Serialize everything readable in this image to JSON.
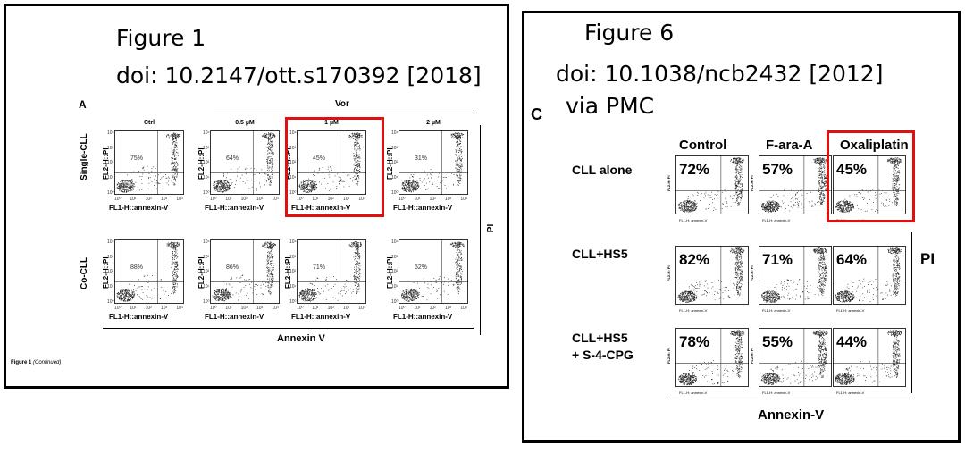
{
  "left_figure": {
    "title_line1": "Figure 1",
    "title_line2": "doi: 10.2147/ott.s170392 [2018]",
    "panel_letter": "A",
    "group_label": "Vor",
    "columns": [
      "Ctrl",
      "0.5 µM",
      "1 µM",
      "2 µM"
    ],
    "rows": [
      {
        "label": "Single-CLL",
        "percents": [
          "75%",
          "64%",
          "45%",
          "31%"
        ]
      },
      {
        "label": "Co-CLL",
        "percents": [
          "88%",
          "86%",
          "71%",
          "52%"
        ]
      }
    ],
    "x_axis_label": "FL1-H::annexin-V",
    "y_axis_label": "FL2-H::PI",
    "y_ticks": [
      "10⁴",
      "10³",
      "10²",
      "10¹",
      "10⁰"
    ],
    "x_ticks": [
      "10⁰",
      "10¹",
      "10²",
      "10³",
      "10⁴"
    ],
    "side_label": "PI",
    "bottom_label": "Annexin V",
    "caption": "Figure 1",
    "caption_continued": "(Continued)"
  },
  "right_figure": {
    "title_line1": "Figure 6",
    "title_line2": "doi: 10.1038/ncb2432 [2012]",
    "title_line3": "via PMC",
    "panel_letter": "C",
    "columns": [
      "Control",
      "F-ara-A",
      "Oxaliplatin"
    ],
    "rows": [
      {
        "label_line1": "CLL alone",
        "label_line2": "",
        "percents": [
          "72%",
          "57%",
          "45%"
        ]
      },
      {
        "label_line1": "CLL+HS5",
        "label_line2": "",
        "percents": [
          "82%",
          "71%",
          "64%"
        ]
      },
      {
        "label_line1": "CLL+HS5",
        "label_line2": "+ S-4-CPG",
        "percents": [
          "78%",
          "55%",
          "44%"
        ]
      }
    ],
    "x_axis_label": "FL1-H: annexin-V",
    "y_axis_label": "FL2-H: PI",
    "side_label": "PI",
    "bottom_label": "Annexin-V"
  },
  "highlight_color": "#e01010"
}
